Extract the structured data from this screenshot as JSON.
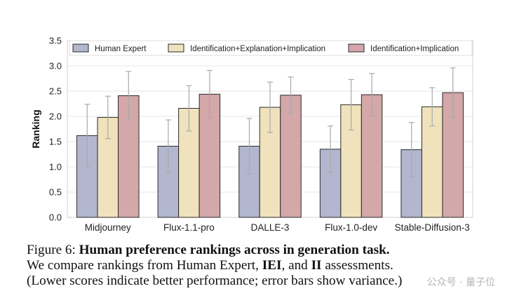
{
  "chart_data": {
    "type": "bar",
    "title": "",
    "xlabel": "",
    "ylabel": "Ranking",
    "ylim": [
      0,
      3.5
    ],
    "yticks": [
      "0.0",
      "0.5",
      "1.0",
      "1.5",
      "2.0",
      "2.5",
      "3.0",
      "3.5"
    ],
    "grid": "horizontal",
    "legend_position": "top",
    "categories": [
      "Midjourney",
      "Flux-1.1-pro",
      "DALLE-3",
      "Flux-1.0-dev",
      "Stable-Diffusion-3"
    ],
    "series": [
      {
        "name": "Human Expert",
        "color": "#b2b7cf",
        "values": [
          1.62,
          1.41,
          1.41,
          1.35,
          1.34
        ],
        "errors": [
          0.62,
          0.52,
          0.55,
          0.46,
          0.54
        ]
      },
      {
        "name": "Identification+Explanation+Implication",
        "color": "#f0e2bc",
        "values": [
          1.98,
          2.16,
          2.18,
          2.23,
          2.19
        ],
        "errors": [
          0.42,
          0.45,
          0.5,
          0.5,
          0.38
        ]
      },
      {
        "name": "Identification+Implication",
        "color": "#d4a7a9",
        "values": [
          2.41,
          2.44,
          2.42,
          2.43,
          2.47
        ],
        "errors": [
          0.48,
          0.47,
          0.36,
          0.42,
          0.49
        ]
      }
    ]
  },
  "caption": {
    "line1_label": "Figure 6: ",
    "line1_bold": "Human preference rankings across in generation task.",
    "line2_pre": "We compare rankings from Human Expert, ",
    "line2_b1": "IEI",
    "line2_mid": ", and ",
    "line2_b2": "II",
    "line2_post": " assessments.",
    "line3": "(Lower scores indicate better performance; error bars show variance.)"
  },
  "watermark": "公众号 · 量子位"
}
